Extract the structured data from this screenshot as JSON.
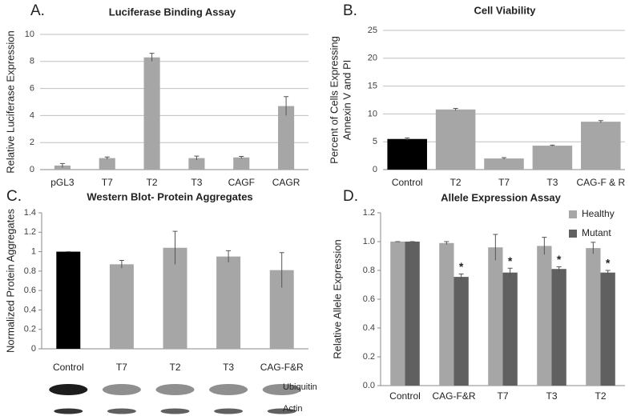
{
  "chart_data": [
    {
      "type": "bar",
      "panel_label": "A.",
      "title": "Luciferase Binding Assay",
      "ylabel": [
        "Relative Luciferase Expression"
      ],
      "categories": [
        "pGL3",
        "T7",
        "T2",
        "T3",
        "CAGF",
        "CAGR"
      ],
      "values": [
        0.3,
        0.85,
        8.3,
        0.85,
        0.9,
        4.7
      ],
      "errors": [
        0.15,
        0.08,
        0.3,
        0.15,
        0.08,
        0.7
      ],
      "color": "#a6a6a6",
      "ylim": [
        0,
        10
      ],
      "yticks": [
        0,
        2,
        4,
        6,
        8,
        10
      ],
      "grid": true
    },
    {
      "type": "bar",
      "panel_label": "B.",
      "title": "Cell Viability",
      "ylabel": [
        "Percent of Cells Expressing",
        "Annexin V and PI"
      ],
      "categories": [
        "Control",
        "T2",
        "T7",
        "T3",
        "CAG-F & R"
      ],
      "values": [
        5.5,
        10.8,
        2.0,
        4.3,
        8.6
      ],
      "errors": [
        0.2,
        0.2,
        0.15,
        0.1,
        0.2
      ],
      "colors": [
        "#000000",
        "#a6a6a6",
        "#a6a6a6",
        "#a6a6a6",
        "#a6a6a6"
      ],
      "ylim": [
        0,
        25
      ],
      "yticks": [
        0,
        5,
        10,
        15,
        20,
        25
      ],
      "grid": true
    },
    {
      "type": "bar",
      "panel_label": "C.",
      "title": "Western Blot- Protein Aggregates",
      "ylabel": [
        "Normalized Protein Aggregates"
      ],
      "categories": [
        "Control",
        "T7",
        "T2",
        "T3",
        "CAG-F&R"
      ],
      "values": [
        1,
        0.87,
        1.04,
        0.95,
        0.81
      ],
      "errors": [
        0,
        0.04,
        0.17,
        0.06,
        0.18
      ],
      "colors": [
        "#000000",
        "#a6a6a6",
        "#a6a6a6",
        "#a6a6a6",
        "#a6a6a6"
      ],
      "ylim": [
        0,
        1.4
      ],
      "yticks": [
        0,
        0.2,
        0.4,
        0.6,
        0.8,
        1,
        1.2,
        1.4
      ],
      "grid": false,
      "annotations": [
        "Ubiquitin",
        "Actin"
      ]
    },
    {
      "type": "bar",
      "panel_label": "D.",
      "title": "Allele Expression Assay",
      "ylabel": [
        "Relative Allele Expression"
      ],
      "categories": [
        "Control",
        "CAG-F&R",
        "T7",
        "T3",
        "T2"
      ],
      "series": [
        {
          "name": "Healthy",
          "color": "#a6a6a6",
          "values": [
            1.0,
            0.99,
            0.96,
            0.97,
            0.955
          ],
          "errors": [
            0,
            0.01,
            0.09,
            0.06,
            0.04
          ]
        },
        {
          "name": "Mutant",
          "color": "#606060",
          "values": [
            1.0,
            0.755,
            0.785,
            0.81,
            0.785
          ],
          "errors": [
            0,
            0.02,
            0.03,
            0.015,
            0.015
          ],
          "significance": [
            null,
            "*",
            "*",
            "*",
            "*"
          ]
        }
      ],
      "ylim": [
        0,
        1.2
      ],
      "yticks": [
        {
          "value": 0,
          "label": "0.0"
        },
        {
          "value": 0.2,
          "label": "0.2"
        },
        {
          "value": 0.4,
          "label": "0.4"
        },
        {
          "value": 0.6,
          "label": "0.6"
        },
        {
          "value": 0.8,
          "label": "0.8"
        },
        {
          "value": 1,
          "label": "1.0"
        },
        {
          "value": 1.2,
          "label": "1.2"
        }
      ],
      "grid": false,
      "legend": "top-right"
    }
  ]
}
